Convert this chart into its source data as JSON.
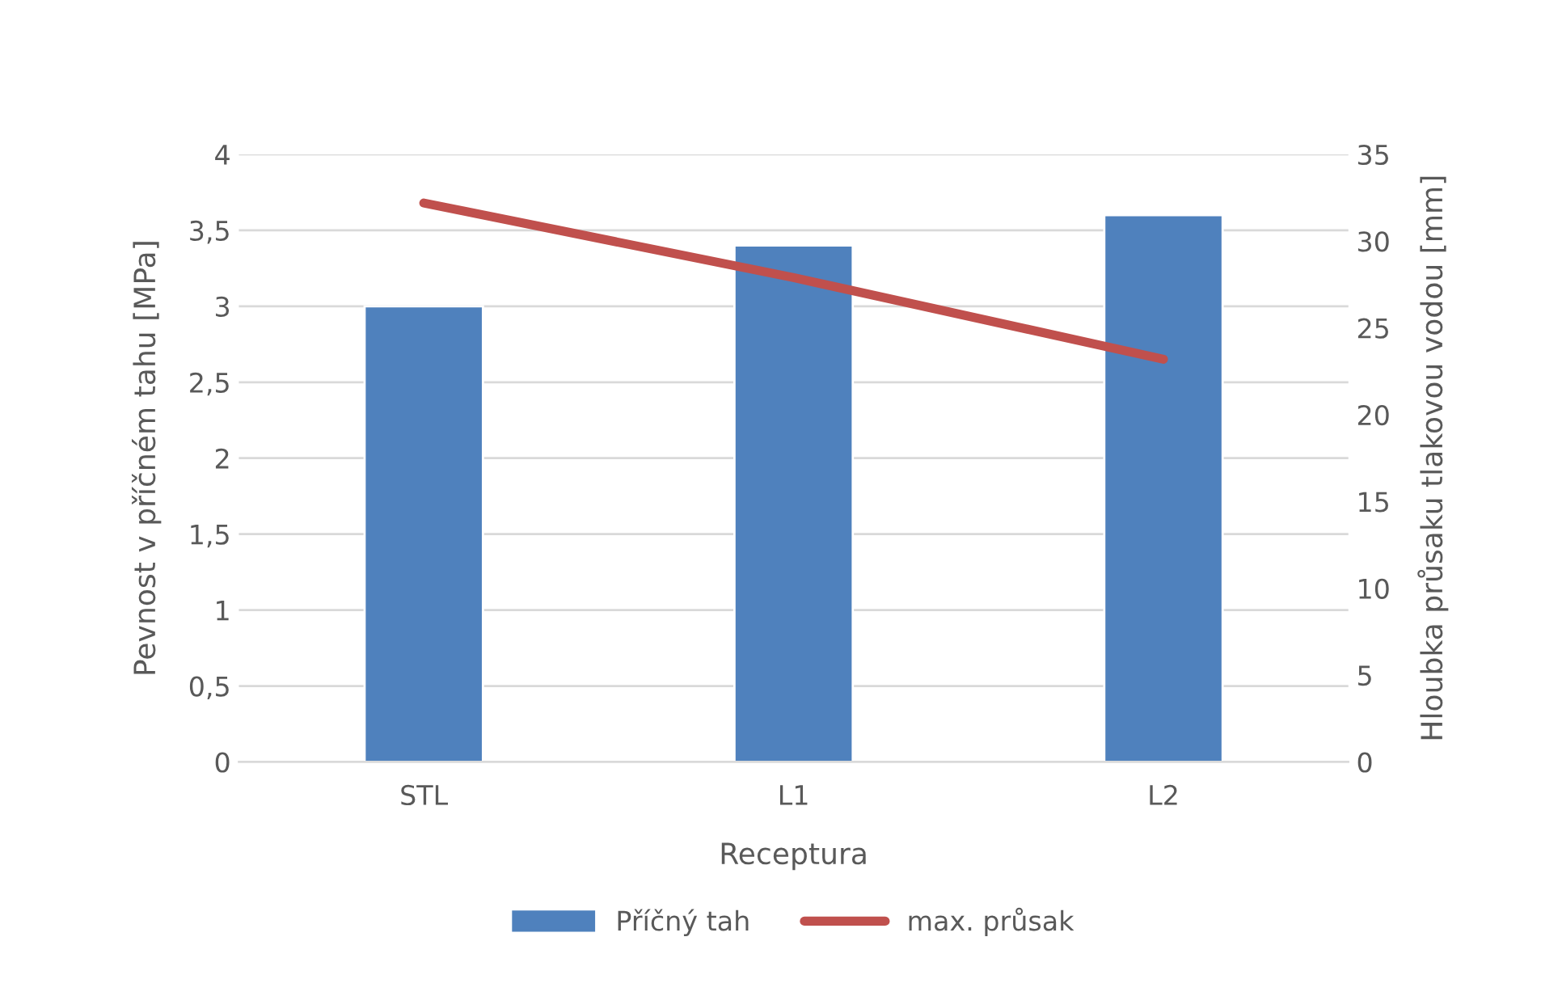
{
  "chart_data": {
    "type": "bar",
    "xlabel": "Receptura",
    "ylabel": "Pevnost v příčném tahu [MPa]",
    "y2label": "Hloubka průsaku tlakovou vodou [mm]",
    "categories": [
      "STL",
      "L1",
      "L2"
    ],
    "series": [
      {
        "name": "Příčný tah",
        "color": "#4f81bd",
        "values": [
          3.0,
          3.4,
          3.6
        ]
      },
      {
        "name": "max. průsak",
        "type": "line",
        "axis": "y2",
        "color": "#c0504d",
        "values": [
          32.2,
          27.9,
          23.2
        ]
      }
    ],
    "ylim": [
      0,
      4
    ],
    "yticks": [
      0,
      {
        "value": 0.5,
        "label": "0,5"
      },
      1,
      {
        "value": 1.5,
        "label": "1,5"
      },
      2,
      {
        "value": 2.5,
        "label": "2,5"
      },
      3,
      {
        "value": 3.5,
        "label": "3,5"
      },
      4
    ],
    "y2lim": [
      0,
      35
    ],
    "y2ticks": [
      0,
      5,
      10,
      15,
      20,
      25,
      30,
      35
    ],
    "grid": "y",
    "legend": "bottom",
    "marker": "none",
    "line_style": "solid"
  }
}
